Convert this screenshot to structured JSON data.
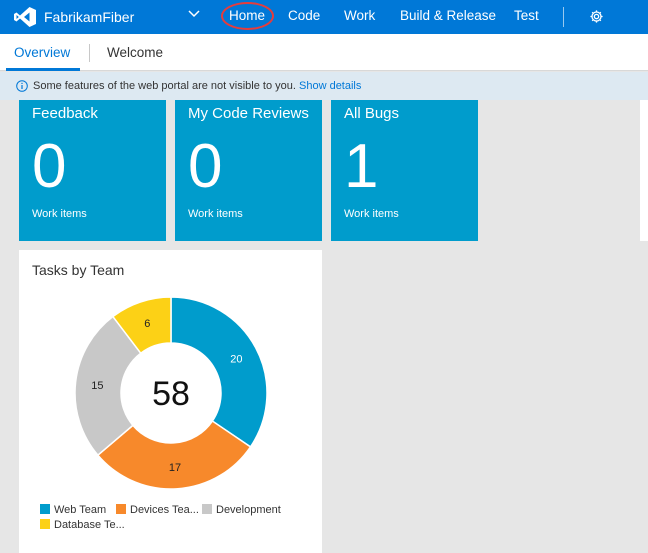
{
  "header": {
    "project": "FabrikamFiber",
    "nav": [
      {
        "label": "Home"
      },
      {
        "label": "Code"
      },
      {
        "label": "Work"
      },
      {
        "label": "Build & Release"
      },
      {
        "label": "Test"
      }
    ],
    "icons": {
      "logo": "visual-studio-logo-icon",
      "dropdown": "chevron-down-icon",
      "settings": "gear-icon"
    },
    "colors": {
      "bar": "#0078d7",
      "highlight_circle": "#e63c3c"
    }
  },
  "tabs": [
    {
      "label": "Overview",
      "selected": true
    },
    {
      "label": "Welcome",
      "selected": false
    }
  ],
  "info": {
    "message": "Some features of the web portal are not visible to you.",
    "link": "Show details"
  },
  "tiles": [
    {
      "title": "Feedback",
      "count": "0",
      "subtitle": "Work items"
    },
    {
      "title": "My Code Reviews",
      "count": "0",
      "subtitle": "Work items"
    },
    {
      "title": "All Bugs",
      "count": "1",
      "subtitle": "Work items"
    }
  ],
  "widget": {
    "title": "Tasks by Team",
    "total": "58"
  },
  "chart_data": {
    "type": "pie",
    "categories": [
      "Web Team",
      "Devices Tea...",
      "Development",
      "Database Te..."
    ],
    "values": [
      20,
      17,
      15,
      6
    ],
    "colors": [
      "#009ccc",
      "#f7892b",
      "#c8c8c8",
      "#fcd116"
    ],
    "total": 58,
    "legend_placement": "bottom"
  }
}
